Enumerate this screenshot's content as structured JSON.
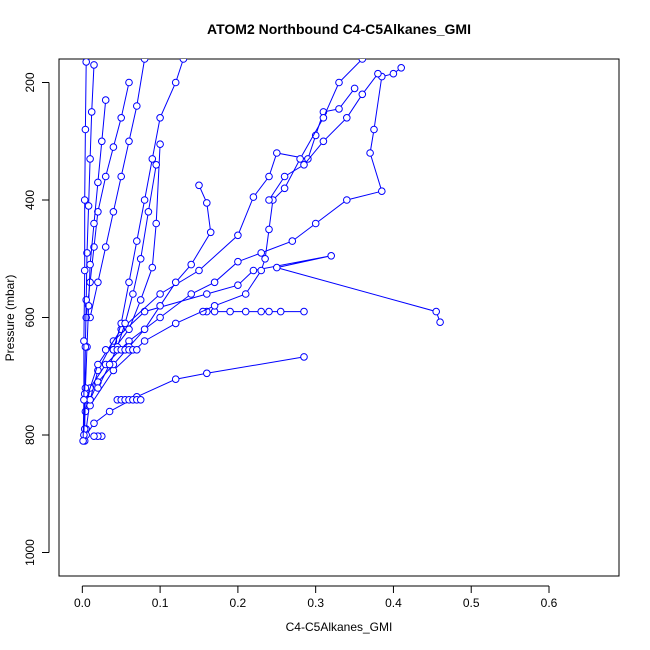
{
  "chart_data": {
    "type": "line",
    "title": "ATOM2 Northbound C4-C5Alkanes_GMI",
    "xlabel": "C4-C5Alkanes_GMI",
    "ylabel": "Pressure (mbar)",
    "xlim": [
      -0.03,
      0.69
    ],
    "ylim": [
      1040,
      160
    ],
    "y_reversed": true,
    "x_ticks": [
      0.0,
      0.1,
      0.2,
      0.3,
      0.4,
      0.5,
      0.6
    ],
    "x_tick_labels": [
      "0.0",
      "0.1",
      "0.2",
      "0.3",
      "0.4",
      "0.5",
      "0.6"
    ],
    "y_ticks": [
      200,
      400,
      600,
      800,
      1000
    ],
    "y_tick_labels": [
      "200",
      "400",
      "600",
      "800",
      "1000"
    ],
    "grid": false,
    "marker": "open-circle",
    "color": "#0000ff",
    "series": [
      {
        "x": [
          0.46,
          0.455,
          0.25,
          0.32,
          0.22,
          0.2,
          0.16,
          0.08,
          0.04,
          0.02,
          0.01,
          0.005,
          0.003
        ],
        "y": [
          608,
          590,
          515,
          495,
          520,
          545,
          560,
          590,
          640,
          690,
          740,
          790,
          810
        ]
      },
      {
        "x": [
          0.285,
          0.255,
          0.24,
          0.23,
          0.21,
          0.19,
          0.17,
          0.16,
          0.155
        ],
        "y": [
          590,
          590,
          590,
          590,
          590,
          590,
          590,
          590,
          590
        ]
      },
      {
        "x": [
          0.285,
          0.16,
          0.12,
          0.07,
          0.035,
          0.015,
          0.005
        ],
        "y": [
          667,
          695,
          705,
          735,
          760,
          780,
          800
        ]
      },
      {
        "x": [
          0.41,
          0.4,
          0.385,
          0.375,
          0.37,
          0.385,
          0.34,
          0.3,
          0.27,
          0.23,
          0.2,
          0.17,
          0.14,
          0.1,
          0.06,
          0.03,
          0.01,
          0.004
        ],
        "y": [
          175,
          185,
          190,
          280,
          320,
          385,
          400,
          440,
          470,
          490,
          505,
          540,
          560,
          600,
          640,
          680,
          720,
          760
        ]
      },
      {
        "x": [
          0.35,
          0.33,
          0.31,
          0.3,
          0.29,
          0.25,
          0.24,
          0.22,
          0.2,
          0.15,
          0.1,
          0.05,
          0.02,
          0.005
        ],
        "y": [
          210,
          245,
          250,
          290,
          330,
          320,
          360,
          395,
          460,
          520,
          560,
          620,
          680,
          740
        ]
      },
      {
        "x": [
          0.36,
          0.33,
          0.31,
          0.28,
          0.26,
          0.245,
          0.24,
          0.235,
          0.23,
          0.21,
          0.17,
          0.12,
          0.08,
          0.04,
          0.01
        ],
        "y": [
          160,
          200,
          260,
          330,
          380,
          400,
          450,
          500,
          520,
          560,
          580,
          610,
          640,
          690,
          750
        ]
      },
      {
        "x": [
          0.38,
          0.36,
          0.34,
          0.31,
          0.285,
          0.26,
          0.24
        ],
        "y": [
          185,
          220,
          260,
          300,
          340,
          360,
          400
        ]
      },
      {
        "x": [
          0.15,
          0.16,
          0.165,
          0.14,
          0.12,
          0.1,
          0.08,
          0.06,
          0.04,
          0.02,
          0.01
        ],
        "y": [
          375,
          405,
          455,
          510,
          540,
          580,
          620,
          650,
          680,
          710,
          740
        ]
      },
      {
        "x": [
          0.1,
          0.095,
          0.09,
          0.075,
          0.06,
          0.04,
          0.03
        ],
        "y": [
          305,
          440,
          515,
          570,
          620,
          655,
          655
        ]
      },
      {
        "x": [
          0.13,
          0.12,
          0.1,
          0.09,
          0.08,
          0.07,
          0.06,
          0.05,
          0.04
        ],
        "y": [
          160,
          200,
          260,
          330,
          400,
          470,
          540,
          610,
          655
        ]
      },
      {
        "x": [
          0.095,
          0.085,
          0.075,
          0.065,
          0.055,
          0.045,
          0.035,
          0.02
        ],
        "y": [
          340,
          420,
          500,
          560,
          610,
          650,
          680,
          720
        ]
      },
      {
        "x": [
          0.08,
          0.07,
          0.06,
          0.05,
          0.04,
          0.03,
          0.02,
          0.01
        ],
        "y": [
          160,
          240,
          300,
          360,
          420,
          480,
          540,
          600
        ]
      },
      {
        "x": [
          0.06,
          0.05,
          0.04,
          0.03,
          0.02,
          0.015,
          0.01,
          0.005
        ],
        "y": [
          200,
          260,
          310,
          360,
          420,
          480,
          540,
          600
        ]
      },
      {
        "x": [
          0.03,
          0.025,
          0.02,
          0.015,
          0.01,
          0.008,
          0.006,
          0.004,
          0.003
        ],
        "y": [
          230,
          300,
          370,
          440,
          510,
          580,
          650,
          720,
          790
        ]
      },
      {
        "x": [
          0.015,
          0.012,
          0.01,
          0.008,
          0.006,
          0.005,
          0.004,
          0.003,
          0.002
        ],
        "y": [
          170,
          250,
          330,
          410,
          490,
          570,
          650,
          730,
          800
        ]
      },
      {
        "x": [
          0.005,
          0.004,
          0.003,
          0.003,
          0.002,
          0.002,
          0.001
        ],
        "y": [
          165,
          280,
          400,
          520,
          640,
          740,
          810
        ]
      },
      {
        "x": [
          0.045,
          0.05,
          0.055,
          0.06,
          0.065,
          0.07,
          0.075
        ],
        "y": [
          740,
          740,
          740,
          740,
          740,
          740,
          740
        ]
      },
      {
        "x": [
          0.04,
          0.045,
          0.05,
          0.055,
          0.06,
          0.065,
          0.07
        ],
        "y": [
          655,
          655,
          655,
          655,
          655,
          655,
          655
        ]
      },
      {
        "x": [
          0.025,
          0.02,
          0.015
        ],
        "y": [
          802,
          802,
          802
        ]
      }
    ]
  }
}
